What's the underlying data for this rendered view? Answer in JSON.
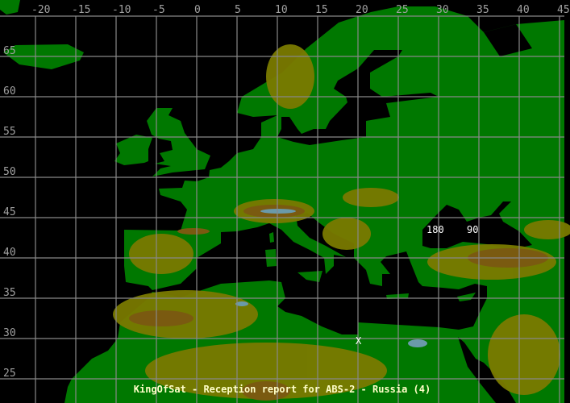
{
  "map": {
    "title": "KingOfSat - Reception report for ABS-2 - Russia (4)",
    "longitude_labels": [
      "-20",
      "-15",
      "-10",
      "-5",
      "0",
      "5",
      "10",
      "15",
      "20",
      "25",
      "30",
      "35",
      "40",
      "45"
    ],
    "latitude_labels": [
      "65",
      "60",
      "55",
      "50",
      "45",
      "40",
      "35",
      "30",
      "25"
    ],
    "markers": [
      {
        "label": "180",
        "lon": 28.5,
        "lat": 43.5
      },
      {
        "label": "90",
        "lon": 33.5,
        "lat": 43.5
      },
      {
        "label": "X",
        "lon": 19.7,
        "lat": 29.7
      }
    ],
    "colors": {
      "sea": "#000000",
      "lowland": "#007800",
      "hills": "#7a7a00",
      "mountains": "#7a5a10",
      "peaks": "#6a9aaa",
      "grid": "#888888",
      "title": "#ffffc8"
    }
  }
}
